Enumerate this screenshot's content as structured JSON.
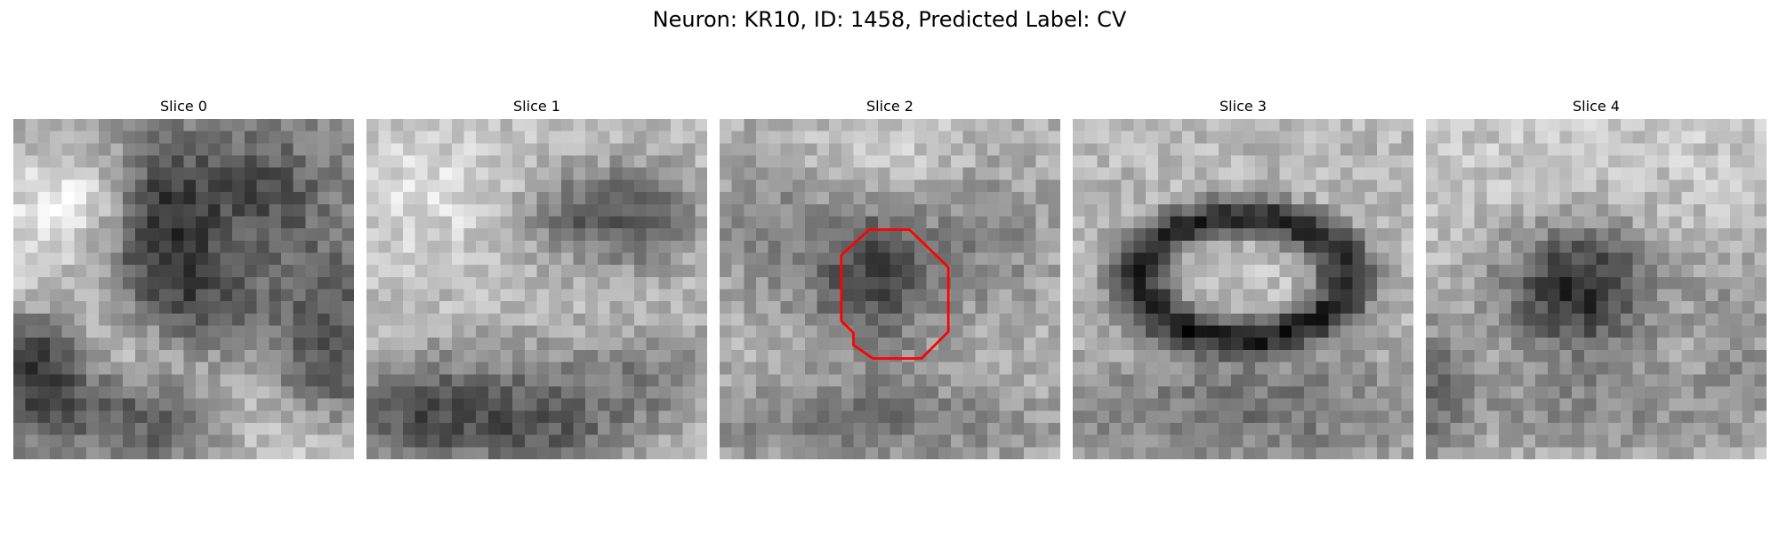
{
  "figure": {
    "title": "Neuron: KR10, ID: 1458, Predicted Label: CV"
  },
  "slices": [
    {
      "label": "Slice 0",
      "has_contour": false
    },
    {
      "label": "Slice 1",
      "has_contour": false
    },
    {
      "label": "Slice 2",
      "has_contour": true
    },
    {
      "label": "Slice 3",
      "has_contour": false
    },
    {
      "label": "Slice 4",
      "has_contour": false
    }
  ],
  "style": {
    "colormap": "gray",
    "contour_color": "#ff0000",
    "image_grid": "28x28 pixels, grayscale electron-microscopy style"
  }
}
